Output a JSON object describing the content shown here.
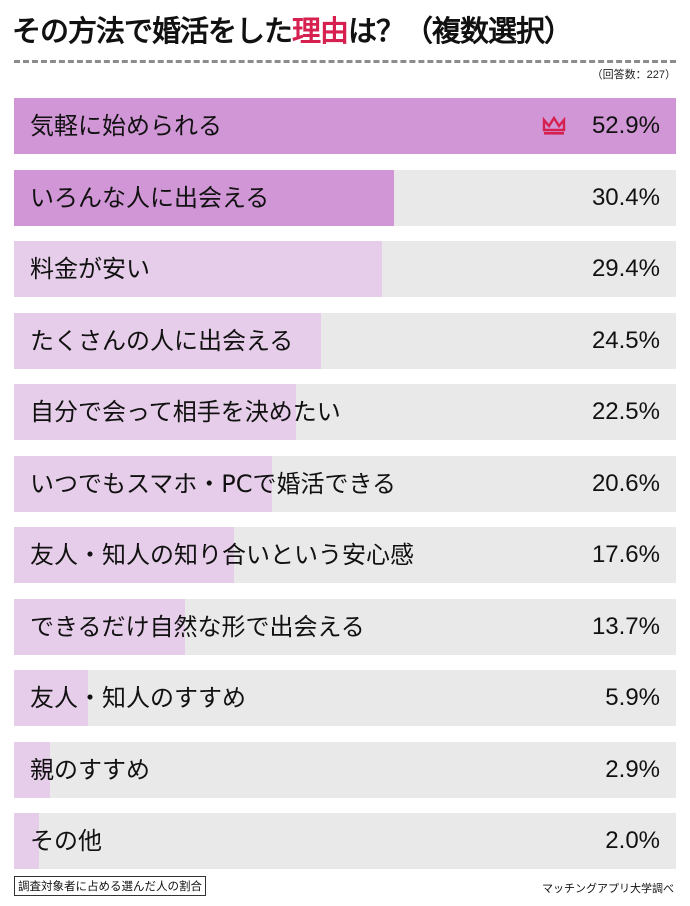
{
  "header": {
    "title_pre": "その方法で婚活をした",
    "title_highlight": "理由",
    "title_post": "は？（複数選択）",
    "respondents": "（回答数：227）"
  },
  "footer": {
    "note": "調査対象者に占める選んだ人の割合",
    "source": "マッチングアプリ大学調べ"
  },
  "colors": {
    "accent": "#d6204f",
    "bar_top": "#d196d6",
    "bar_other": "#e6cde9",
    "track": "#e9e9e9"
  },
  "chart_data": {
    "type": "bar",
    "orientation": "horizontal",
    "title": "その方法で婚活をした理由は？（複数選択）",
    "xlabel": "",
    "ylabel": "",
    "unit": "%",
    "categories": [
      "気軽に始められる",
      "いろんな人に出会える",
      "料金が安い",
      "たくさんの人に出会える",
      "自分で会って相手を決めたい",
      "いつでもスマホ・PCで婚活できる",
      "友人・知人の知り合いという安心感",
      "できるだけ自然な形で出会える",
      "友人・知人のすすめ",
      "親のすすめ",
      "その他"
    ],
    "values": [
      52.9,
      30.4,
      29.4,
      24.5,
      22.5,
      20.6,
      17.6,
      13.7,
      5.9,
      2.9,
      2.0
    ],
    "labels": [
      "52.9%",
      "30.4%",
      "29.4%",
      "24.5%",
      "22.5%",
      "20.6%",
      "17.6%",
      "13.7%",
      "5.9%",
      "2.9%",
      "2.0%"
    ],
    "highlighted": [
      0,
      1
    ],
    "top_marker": "crown-icon",
    "annotations": [
      "（回答数：227）",
      "調査対象者に占める選んだ人の割合",
      "マッチングアプリ大学調べ"
    ]
  }
}
